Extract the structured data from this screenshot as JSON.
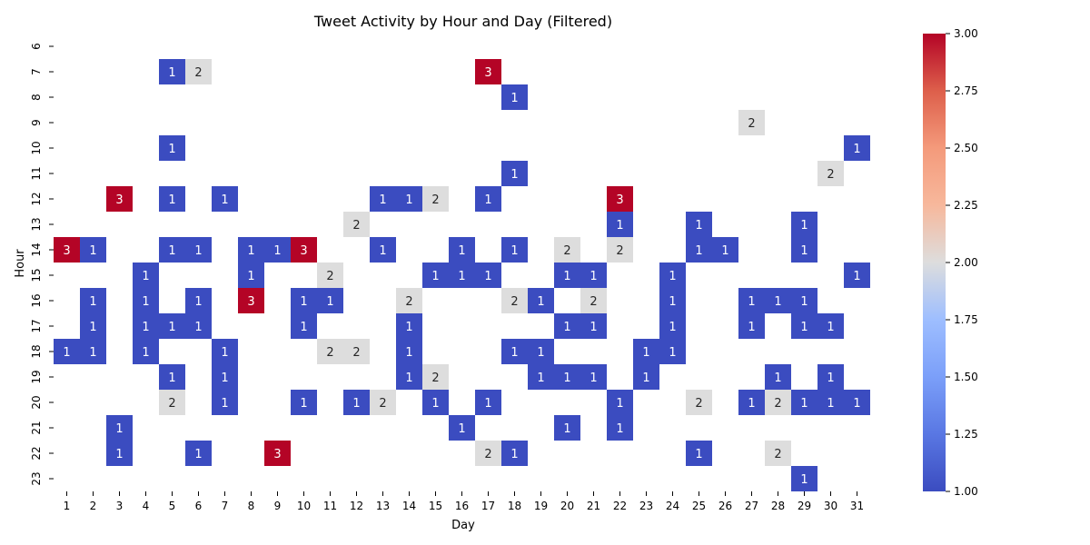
{
  "chart_data": {
    "type": "heatmap",
    "title": "Tweet Activity by Hour and Day (Filtered)",
    "xlabel": "Day",
    "ylabel": "Hour",
    "x": [
      1,
      2,
      3,
      4,
      5,
      6,
      7,
      8,
      9,
      10,
      11,
      12,
      13,
      14,
      15,
      16,
      17,
      18,
      19,
      20,
      21,
      22,
      23,
      24,
      25,
      26,
      27,
      28,
      29,
      30,
      31
    ],
    "y": [
      6,
      7,
      8,
      9,
      10,
      11,
      12,
      13,
      14,
      15,
      16,
      17,
      18,
      19,
      20,
      21,
      22,
      23
    ],
    "values": [
      [
        1,
        17,
        3
      ],
      [
        1,
        5,
        1
      ],
      [
        1,
        6,
        2
      ],
      [
        2,
        18,
        1
      ],
      [
        3,
        27,
        2
      ],
      [
        4,
        5,
        1
      ],
      [
        4,
        31,
        1
      ],
      [
        5,
        18,
        1
      ],
      [
        5,
        30,
        2
      ],
      [
        6,
        3,
        3
      ],
      [
        6,
        5,
        1
      ],
      [
        6,
        7,
        1
      ],
      [
        6,
        13,
        1
      ],
      [
        6,
        14,
        1
      ],
      [
        6,
        15,
        2
      ],
      [
        6,
        17,
        1
      ],
      [
        6,
        22,
        3
      ],
      [
        7,
        12,
        2
      ],
      [
        7,
        22,
        1
      ],
      [
        7,
        25,
        1
      ],
      [
        7,
        29,
        1
      ],
      [
        8,
        1,
        3
      ],
      [
        8,
        2,
        1
      ],
      [
        8,
        5,
        1
      ],
      [
        8,
        6,
        1
      ],
      [
        8,
        8,
        1
      ],
      [
        8,
        9,
        1
      ],
      [
        8,
        10,
        3
      ],
      [
        8,
        13,
        1
      ],
      [
        8,
        16,
        1
      ],
      [
        8,
        18,
        1
      ],
      [
        8,
        20,
        2
      ],
      [
        8,
        22,
        2
      ],
      [
        8,
        25,
        1
      ],
      [
        8,
        26,
        1
      ],
      [
        8,
        29,
        1
      ],
      [
        9,
        4,
        1
      ],
      [
        9,
        8,
        1
      ],
      [
        9,
        11,
        2
      ],
      [
        9,
        15,
        1
      ],
      [
        9,
        16,
        1
      ],
      [
        9,
        17,
        1
      ],
      [
        9,
        20,
        1
      ],
      [
        9,
        21,
        1
      ],
      [
        9,
        24,
        1
      ],
      [
        9,
        31,
        1
      ],
      [
        10,
        2,
        1
      ],
      [
        10,
        4,
        1
      ],
      [
        10,
        6,
        1
      ],
      [
        10,
        8,
        3
      ],
      [
        10,
        10,
        1
      ],
      [
        10,
        11,
        1
      ],
      [
        10,
        14,
        2
      ],
      [
        10,
        18,
        2
      ],
      [
        10,
        19,
        1
      ],
      [
        10,
        21,
        2
      ],
      [
        10,
        24,
        1
      ],
      [
        10,
        27,
        1
      ],
      [
        10,
        28,
        1
      ],
      [
        10,
        29,
        1
      ],
      [
        11,
        2,
        1
      ],
      [
        11,
        4,
        1
      ],
      [
        11,
        5,
        1
      ],
      [
        11,
        6,
        1
      ],
      [
        11,
        10,
        1
      ],
      [
        11,
        14,
        1
      ],
      [
        11,
        20,
        1
      ],
      [
        11,
        21,
        1
      ],
      [
        11,
        24,
        1
      ],
      [
        11,
        27,
        1
      ],
      [
        11,
        29,
        1
      ],
      [
        11,
        30,
        1
      ],
      [
        12,
        1,
        1
      ],
      [
        12,
        2,
        1
      ],
      [
        12,
        4,
        1
      ],
      [
        12,
        7,
        1
      ],
      [
        12,
        11,
        2
      ],
      [
        12,
        12,
        2
      ],
      [
        12,
        14,
        1
      ],
      [
        12,
        18,
        1
      ],
      [
        12,
        19,
        1
      ],
      [
        12,
        23,
        1
      ],
      [
        12,
        24,
        1
      ],
      [
        13,
        5,
        1
      ],
      [
        13,
        7,
        1
      ],
      [
        13,
        14,
        1
      ],
      [
        13,
        15,
        2
      ],
      [
        13,
        19,
        1
      ],
      [
        13,
        20,
        1
      ],
      [
        13,
        21,
        1
      ],
      [
        13,
        23,
        1
      ],
      [
        13,
        28,
        1
      ],
      [
        13,
        30,
        1
      ],
      [
        14,
        5,
        2
      ],
      [
        14,
        7,
        1
      ],
      [
        14,
        10,
        1
      ],
      [
        14,
        12,
        1
      ],
      [
        14,
        13,
        2
      ],
      [
        14,
        15,
        1
      ],
      [
        14,
        17,
        1
      ],
      [
        14,
        22,
        1
      ],
      [
        14,
        25,
        2
      ],
      [
        14,
        27,
        1
      ],
      [
        14,
        28,
        2
      ],
      [
        14,
        29,
        1
      ],
      [
        14,
        30,
        1
      ],
      [
        14,
        31,
        1
      ],
      [
        15,
        3,
        1
      ],
      [
        15,
        16,
        1
      ],
      [
        15,
        20,
        1
      ],
      [
        15,
        22,
        1
      ],
      [
        16,
        3,
        1
      ],
      [
        16,
        6,
        1
      ],
      [
        16,
        9,
        3
      ],
      [
        16,
        17,
        2
      ],
      [
        16,
        18,
        1
      ],
      [
        16,
        25,
        1
      ],
      [
        16,
        28,
        2
      ],
      [
        17,
        29,
        1
      ]
    ],
    "value_format": "[hour_index, day, count]",
    "colorbar": {
      "range": [
        1.0,
        3.0
      ],
      "ticks": [
        "1.00",
        "1.25",
        "1.50",
        "1.75",
        "2.00",
        "2.25",
        "2.50",
        "2.75",
        "3.00"
      ],
      "colormap": "coolwarm",
      "colors": {
        "low": "#3b4cc0",
        "mid": "#dddddd",
        "high": "#b40426"
      }
    },
    "grid": false,
    "legend": "colorbar-right"
  }
}
